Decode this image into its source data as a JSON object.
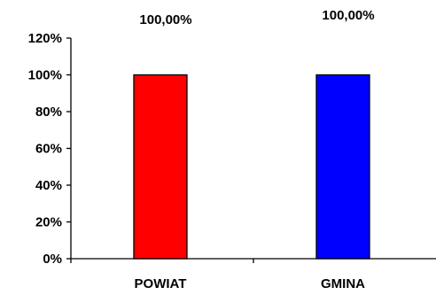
{
  "chart_data": {
    "type": "bar",
    "categories": [
      "POWIAT",
      "GMINA"
    ],
    "values": [
      100,
      100
    ],
    "data_labels": [
      "100,00%",
      "100,00%"
    ],
    "colors": [
      "#ff0000",
      "#0000ff"
    ],
    "ylim": [
      0,
      120
    ],
    "yticks": [
      0,
      20,
      40,
      60,
      80,
      100,
      120
    ],
    "ytick_labels": [
      "0%",
      "20%",
      "40%",
      "60%",
      "80%",
      "100%",
      "120%"
    ],
    "title": "",
    "xlabel": "",
    "ylabel": "",
    "grid": false,
    "legend": false
  }
}
